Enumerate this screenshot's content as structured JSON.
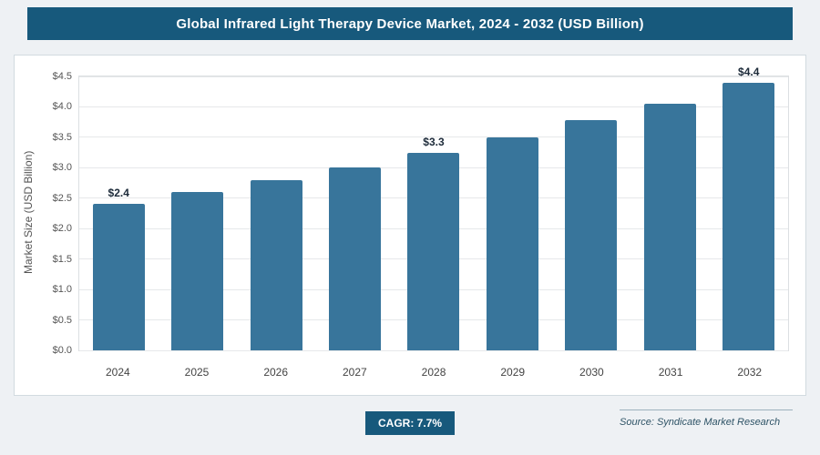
{
  "chart_data": {
    "type": "bar",
    "title": "Global Infrared Light Therapy Device Market, 2024 - 2032 (USD Billion)",
    "categories": [
      "2024",
      "2025",
      "2026",
      "2027",
      "2028",
      "2029",
      "2030",
      "2031",
      "2032"
    ],
    "values": [
      2.4,
      2.6,
      2.8,
      3.0,
      3.25,
      3.5,
      3.78,
      4.05,
      4.4
    ],
    "value_labels": {
      "2024": "$2.4",
      "2028": "$3.3",
      "2032": "$4.4"
    },
    "xlabel": "",
    "ylabel": "Market Size (USD Billion)",
    "ylim": [
      0,
      4.5
    ],
    "yticks": [
      "$0.0",
      "$0.5",
      "$1.0",
      "$1.5",
      "$2.0",
      "$2.5",
      "$3.0",
      "$3.5",
      "$4.0",
      "$4.5"
    ],
    "grid": "horizontal",
    "legend": "none",
    "bar_color": "#38759b"
  },
  "footer": {
    "cagr_label": "CAGR: 7.7%",
    "source": "Source: Syndicate Market Research"
  }
}
